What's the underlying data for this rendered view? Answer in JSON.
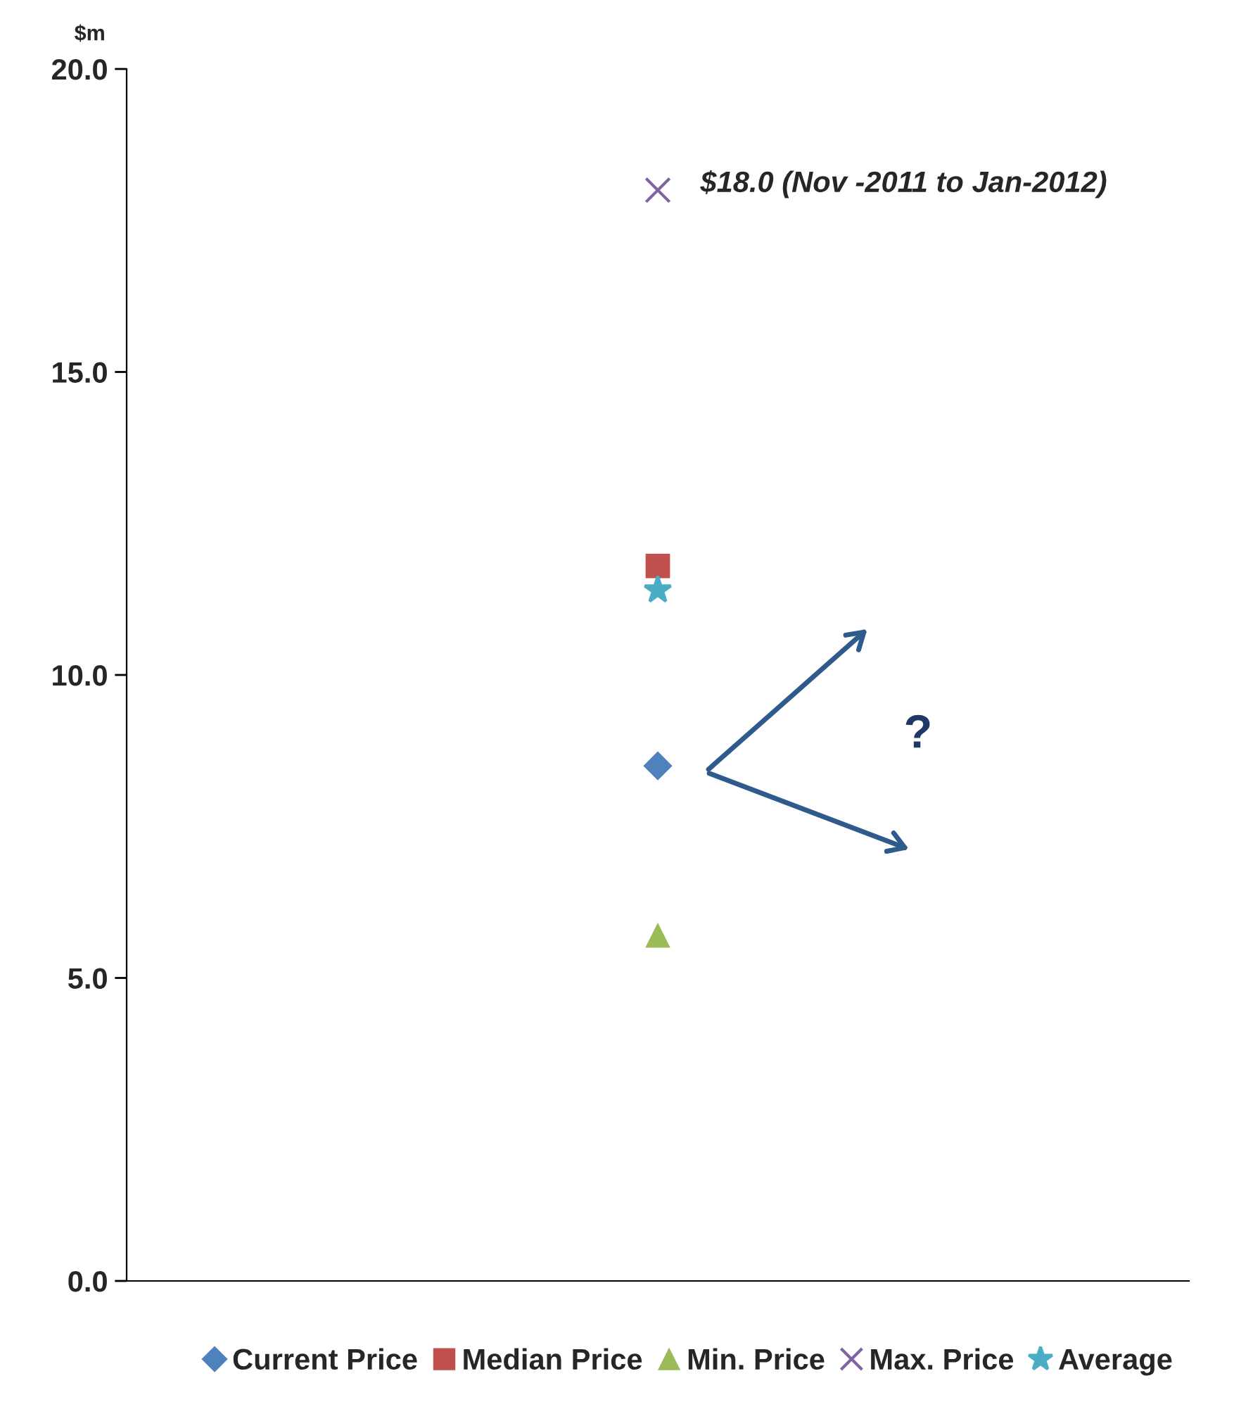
{
  "chart_data": {
    "type": "scatter",
    "ylabel": "$m",
    "categories": [
      null
    ],
    "ylim": [
      0,
      20
    ],
    "yticks": [
      {
        "value": 0,
        "label": "0.0"
      },
      {
        "value": 5,
        "label": "5.0"
      },
      {
        "value": 10,
        "label": "10.0"
      },
      {
        "value": 15,
        "label": "15.0"
      },
      {
        "value": 20,
        "label": "20.0"
      }
    ],
    "grid": false,
    "legend": "bottom",
    "series": [
      {
        "name": "Current Price",
        "color": "#4f81bd",
        "marker": "diamond",
        "values": [
          8.5
        ]
      },
      {
        "name": "Median Price",
        "color": "#c0504d",
        "marker": "square",
        "values": [
          11.8
        ]
      },
      {
        "name": "Min. Price",
        "color": "#9bbb59",
        "marker": "triangle",
        "values": [
          5.7
        ]
      },
      {
        "name": "Max. Price",
        "color": "#8064a2",
        "marker": "cross",
        "values": [
          18.0
        ]
      },
      {
        "name": "Average",
        "color": "#4bacc6",
        "marker": "star",
        "values": [
          11.4
        ]
      }
    ],
    "annotations": [
      "$18.0 (Nov -2011 to Jan-2012)",
      "?"
    ]
  }
}
